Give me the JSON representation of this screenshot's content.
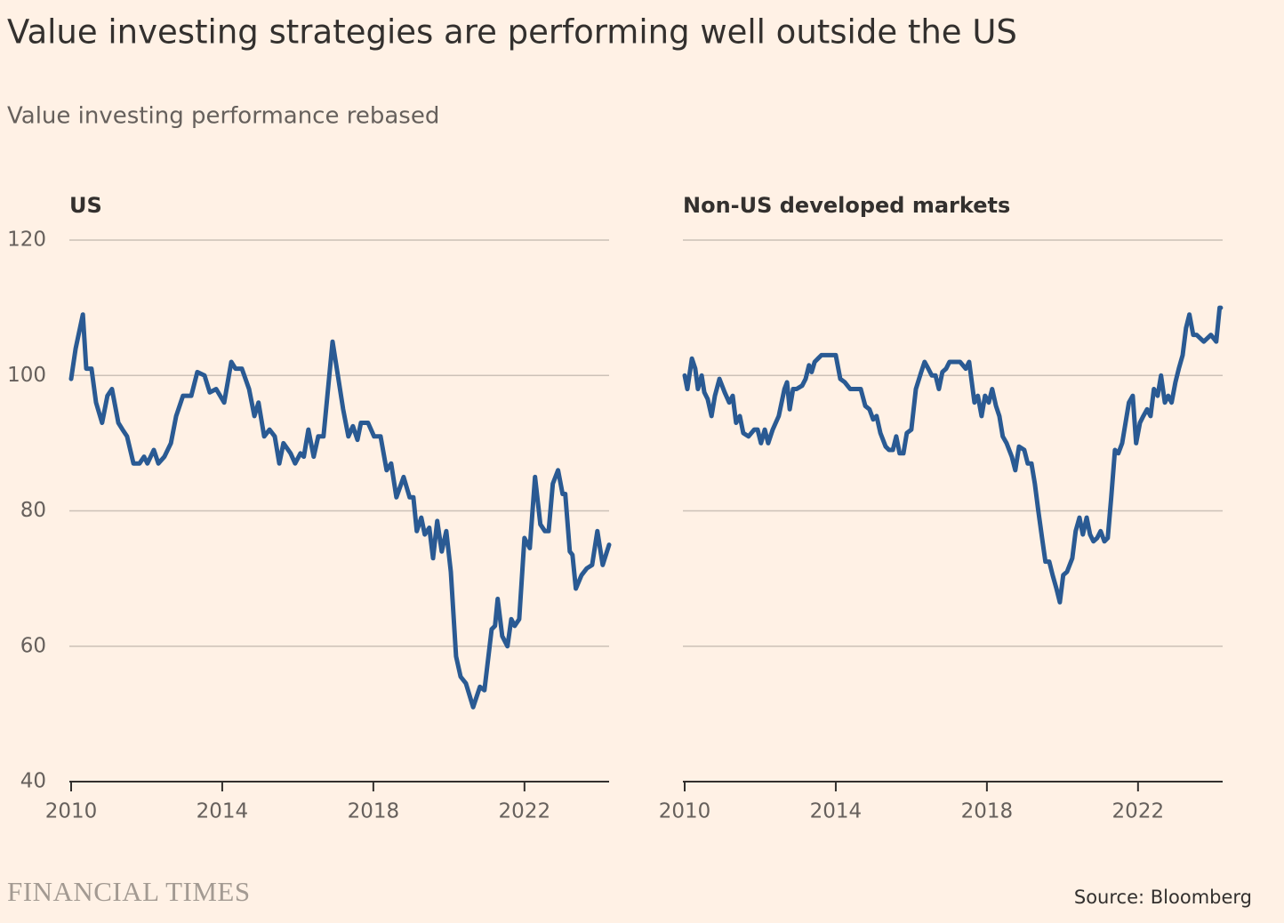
{
  "title": "Value investing strategies are performing well outside the US",
  "subtitle": "Value investing performance rebased",
  "source": "Source: Bloomberg",
  "brand": "FINANCIAL TIMES",
  "chart_data": [
    {
      "type": "line",
      "title": "US",
      "color": "#2a5a93",
      "grid": true,
      "ytick_labels": true,
      "xlim": [
        2010,
        2024.24
      ],
      "xticks": [
        2010,
        2014,
        2018,
        2022
      ],
      "ylim": [
        40,
        120
      ],
      "yticks": [
        40,
        60,
        80,
        100,
        120
      ],
      "x": [
        2010,
        2010.12,
        2010.31,
        2010.4,
        2010.54,
        2010.66,
        2010.82,
        2010.96,
        2011.08,
        2011.25,
        2011.36,
        2011.48,
        2011.65,
        2011.81,
        2011.93,
        2012.02,
        2012.19,
        2012.31,
        2012.47,
        2012.64,
        2012.78,
        2012.96,
        2013.18,
        2013.34,
        2013.53,
        2013.67,
        2013.84,
        2014.05,
        2014.24,
        2014.35,
        2014.52,
        2014.71,
        2014.85,
        2014.96,
        2015.11,
        2015.25,
        2015.39,
        2015.51,
        2015.62,
        2015.81,
        2015.93,
        2016.07,
        2016.16,
        2016.28,
        2016.42,
        2016.54,
        2016.68,
        2016.92,
        2017.06,
        2017.2,
        2017.34,
        2017.46,
        2017.58,
        2017.67,
        2017.86,
        2018.02,
        2018.19,
        2018.35,
        2018.47,
        2018.61,
        2018.8,
        2018.96,
        2019.06,
        2019.15,
        2019.27,
        2019.36,
        2019.48,
        2019.58,
        2019.69,
        2019.81,
        2019.93,
        2020.05,
        2020.19,
        2020.31,
        2020.45,
        2020.64,
        2020.82,
        2020.94,
        2021.13,
        2021.22,
        2021.29,
        2021.41,
        2021.55,
        2021.65,
        2021.74,
        2021.86,
        2022,
        2022.14,
        2022.28,
        2022.42,
        2022.54,
        2022.64,
        2022.75,
        2022.89,
        2023.01,
        2023.08,
        2023.2,
        2023.27,
        2023.36,
        2023.51,
        2023.65,
        2023.79,
        2023.93,
        2024.07,
        2024.24
      ],
      "values": [
        99.5,
        104,
        109,
        101,
        101,
        96,
        93,
        97,
        98,
        93,
        92,
        91,
        87,
        87,
        88,
        87,
        89,
        87,
        88,
        90,
        94,
        97,
        97,
        100.5,
        100,
        97.5,
        98,
        96,
        102,
        101,
        101,
        98,
        94,
        96,
        91,
        92,
        91,
        87,
        90,
        88.5,
        87,
        88.5,
        88,
        92,
        88,
        91,
        91,
        105,
        100,
        95,
        91,
        92.5,
        90.5,
        93,
        93,
        91,
        91,
        86,
        87,
        82,
        85,
        82,
        82,
        77,
        79,
        76.5,
        77.5,
        73,
        78.5,
        74,
        77,
        71,
        58.5,
        55.5,
        54.5,
        51,
        54,
        53.5,
        62.5,
        63,
        67,
        61.5,
        60,
        64,
        63,
        64,
        76,
        74.5,
        85,
        78,
        77,
        77,
        84,
        86,
        82.5,
        82.5,
        74,
        73.5,
        68.5,
        70.5,
        71.5,
        72,
        77,
        72,
        75
      ]
    },
    {
      "type": "line",
      "title": "Non-US developed markets",
      "color": "#2a5a93",
      "grid": true,
      "ytick_labels": false,
      "xlim": [
        2010,
        2024.24
      ],
      "xticks": [
        2010,
        2014,
        2018,
        2022
      ],
      "ylim": [
        40,
        120
      ],
      "yticks": [
        40,
        60,
        80,
        100,
        120
      ],
      "x": [
        2010,
        2010.07,
        2010.19,
        2010.28,
        2010.35,
        2010.45,
        2010.52,
        2010.61,
        2010.71,
        2010.8,
        2010.92,
        2011.06,
        2011.18,
        2011.27,
        2011.36,
        2011.46,
        2011.55,
        2011.69,
        2011.84,
        2011.93,
        2012.02,
        2012.12,
        2012.21,
        2012.33,
        2012.49,
        2012.64,
        2012.71,
        2012.78,
        2012.87,
        2012.96,
        2013.11,
        2013.2,
        2013.29,
        2013.36,
        2013.44,
        2013.53,
        2013.62,
        2013.76,
        2013.91,
        2014,
        2014.12,
        2014.24,
        2014.38,
        2014.52,
        2014.66,
        2014.78,
        2014.89,
        2014.99,
        2015.08,
        2015.18,
        2015.32,
        2015.41,
        2015.51,
        2015.6,
        2015.69,
        2015.79,
        2015.88,
        2016,
        2016.12,
        2016.26,
        2016.35,
        2016.45,
        2016.54,
        2016.64,
        2016.73,
        2016.82,
        2016.92,
        2017.01,
        2017.15,
        2017.29,
        2017.44,
        2017.53,
        2017.67,
        2017.76,
        2017.86,
        2017.95,
        2018.05,
        2018.14,
        2018.24,
        2018.33,
        2018.42,
        2018.52,
        2018.66,
        2018.75,
        2018.85,
        2018.99,
        2019.08,
        2019.18,
        2019.27,
        2019.36,
        2019.46,
        2019.55,
        2019.65,
        2019.74,
        2019.84,
        2019.93,
        2020.02,
        2020.12,
        2020.26,
        2020.35,
        2020.45,
        2020.54,
        2020.64,
        2020.73,
        2020.82,
        2020.92,
        2021.01,
        2021.11,
        2021.2,
        2021.29,
        2021.39,
        2021.48,
        2021.58,
        2021.67,
        2021.76,
        2021.86,
        2021.95,
        2022.05,
        2022.14,
        2022.24,
        2022.33,
        2022.42,
        2022.52,
        2022.61,
        2022.71,
        2022.8,
        2022.89,
        2022.99,
        2023.08,
        2023.18,
        2023.27,
        2023.36,
        2023.46,
        2023.55,
        2023.74,
        2023.93,
        2024.07,
        2024.16,
        2024.19
      ],
      "values": [
        100,
        98,
        102.5,
        101,
        98,
        100,
        97.5,
        96.5,
        94,
        97,
        99.5,
        97.5,
        96,
        97,
        93,
        94,
        91.5,
        91,
        92,
        92,
        90,
        92,
        90,
        92,
        94,
        98,
        99,
        95,
        98,
        98,
        98.5,
        99.5,
        101.5,
        100.5,
        102,
        102.5,
        103,
        103,
        103,
        103,
        99.5,
        99,
        98,
        98,
        98,
        95.5,
        95,
        93.5,
        94,
        91.5,
        89.5,
        89,
        89,
        91,
        88.5,
        88.5,
        91.5,
        92,
        98,
        100.5,
        102,
        101,
        100,
        100,
        98,
        100.5,
        101,
        102,
        102,
        102,
        101,
        102,
        96,
        97,
        94,
        97,
        96,
        98,
        95.5,
        94,
        91,
        90,
        88,
        86,
        89.5,
        89,
        87,
        87,
        84,
        80,
        76,
        72.5,
        72.5,
        70.5,
        68.5,
        66.5,
        70.5,
        71,
        73,
        77,
        79,
        76.5,
        79,
        76.5,
        75.5,
        76,
        77,
        75.5,
        76,
        82,
        89,
        88.5,
        90,
        93,
        96,
        97,
        90,
        93,
        94,
        95,
        94,
        98,
        97,
        100,
        96,
        97,
        96,
        99,
        101,
        103,
        107,
        109,
        106,
        106,
        105,
        106,
        105,
        110,
        110
      ]
    }
  ]
}
